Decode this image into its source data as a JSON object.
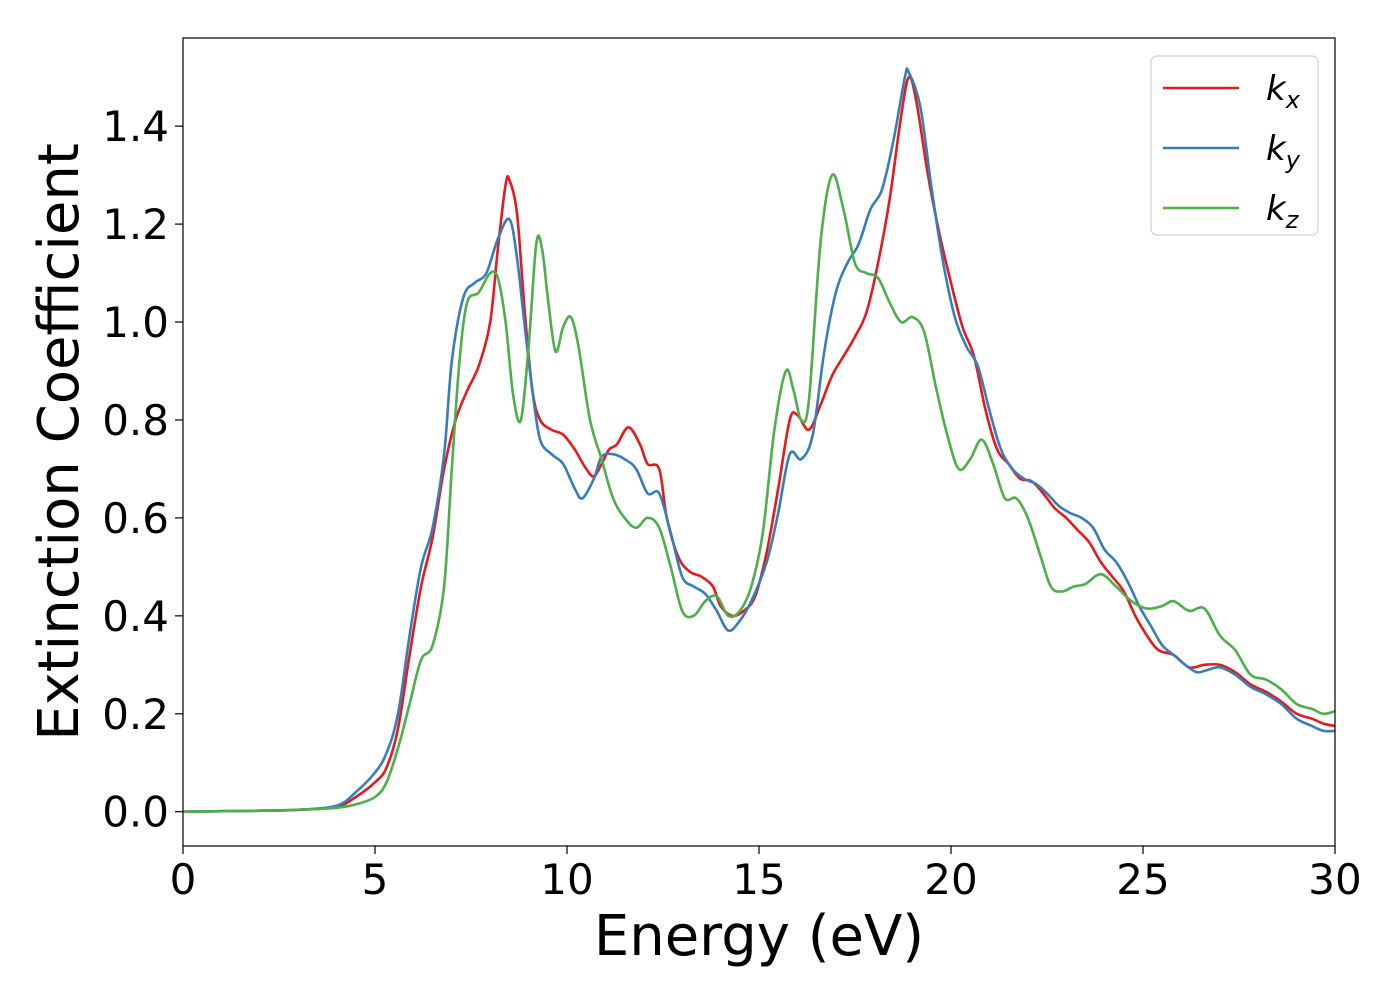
{
  "chart_data": {
    "type": "line",
    "xlabel": "Energy (eV)",
    "ylabel": "Extinction Coefficient",
    "xlim": [
      0,
      30
    ],
    "ylim": [
      -0.07,
      1.58
    ],
    "xticks": [
      0,
      5,
      10,
      15,
      20,
      25,
      30
    ],
    "yticks": [
      0.0,
      0.2,
      0.4,
      0.6,
      0.8,
      1.0,
      1.2,
      1.4
    ],
    "xtick_labels": [
      "0",
      "5",
      "10",
      "15",
      "20",
      "25",
      "30"
    ],
    "ytick_labels": [
      "0.0",
      "0.2",
      "0.4",
      "0.6",
      "0.8",
      "1.0",
      "1.2",
      "1.4"
    ],
    "grid": false,
    "legend_position": "top-right",
    "series": [
      {
        "name": "k_x",
        "label_main": "k",
        "label_sub": "x",
        "color": "#e41a1c",
        "points": [
          [
            0,
            0
          ],
          [
            1,
            0.001
          ],
          [
            2,
            0.002
          ],
          [
            3,
            0.004
          ],
          [
            4,
            0.01
          ],
          [
            4.5,
            0.03
          ],
          [
            5,
            0.06
          ],
          [
            5.3,
            0.09
          ],
          [
            5.6,
            0.17
          ],
          [
            5.9,
            0.32
          ],
          [
            6.2,
            0.46
          ],
          [
            6.5,
            0.56
          ],
          [
            6.8,
            0.7
          ],
          [
            7.1,
            0.8
          ],
          [
            7.4,
            0.86
          ],
          [
            7.7,
            0.91
          ],
          [
            8.0,
            1.0
          ],
          [
            8.2,
            1.15
          ],
          [
            8.4,
            1.28
          ],
          [
            8.5,
            1.29
          ],
          [
            8.7,
            1.22
          ],
          [
            8.9,
            1.02
          ],
          [
            9.1,
            0.86
          ],
          [
            9.3,
            0.8
          ],
          [
            9.6,
            0.78
          ],
          [
            9.9,
            0.77
          ],
          [
            10.2,
            0.74
          ],
          [
            10.5,
            0.7
          ],
          [
            10.7,
            0.685
          ],
          [
            10.9,
            0.71
          ],
          [
            11.1,
            0.74
          ],
          [
            11.3,
            0.75
          ],
          [
            11.6,
            0.785
          ],
          [
            11.9,
            0.75
          ],
          [
            12.1,
            0.71
          ],
          [
            12.4,
            0.7
          ],
          [
            12.6,
            0.6
          ],
          [
            12.9,
            0.52
          ],
          [
            13.2,
            0.49
          ],
          [
            13.5,
            0.48
          ],
          [
            13.8,
            0.46
          ],
          [
            14.0,
            0.42
          ],
          [
            14.3,
            0.4
          ],
          [
            14.6,
            0.41
          ],
          [
            14.9,
            0.44
          ],
          [
            15.2,
            0.53
          ],
          [
            15.5,
            0.66
          ],
          [
            15.8,
            0.8
          ],
          [
            16.0,
            0.81
          ],
          [
            16.3,
            0.78
          ],
          [
            16.6,
            0.83
          ],
          [
            16.9,
            0.89
          ],
          [
            17.2,
            0.93
          ],
          [
            17.5,
            0.97
          ],
          [
            17.8,
            1.02
          ],
          [
            18.1,
            1.12
          ],
          [
            18.4,
            1.25
          ],
          [
            18.7,
            1.42
          ],
          [
            18.9,
            1.5
          ],
          [
            19.1,
            1.45
          ],
          [
            19.4,
            1.3
          ],
          [
            19.7,
            1.18
          ],
          [
            20.0,
            1.08
          ],
          [
            20.3,
            0.99
          ],
          [
            20.6,
            0.93
          ],
          [
            20.9,
            0.82
          ],
          [
            21.2,
            0.74
          ],
          [
            21.5,
            0.71
          ],
          [
            21.8,
            0.68
          ],
          [
            22.1,
            0.675
          ],
          [
            22.4,
            0.65
          ],
          [
            22.7,
            0.62
          ],
          [
            23.0,
            0.6
          ],
          [
            23.3,
            0.575
          ],
          [
            23.6,
            0.55
          ],
          [
            23.9,
            0.51
          ],
          [
            24.2,
            0.48
          ],
          [
            24.5,
            0.45
          ],
          [
            24.8,
            0.4
          ],
          [
            25.1,
            0.36
          ],
          [
            25.4,
            0.33
          ],
          [
            25.8,
            0.32
          ],
          [
            26.2,
            0.295
          ],
          [
            26.6,
            0.3
          ],
          [
            27.0,
            0.3
          ],
          [
            27.4,
            0.285
          ],
          [
            27.8,
            0.26
          ],
          [
            28.2,
            0.245
          ],
          [
            28.6,
            0.225
          ],
          [
            29.0,
            0.2
          ],
          [
            29.4,
            0.19
          ],
          [
            29.7,
            0.18
          ],
          [
            30,
            0.175
          ]
        ]
      },
      {
        "name": "k_y",
        "label_main": "k",
        "label_sub": "y",
        "color": "#377eb8",
        "points": [
          [
            0,
            0
          ],
          [
            1,
            0.001
          ],
          [
            2,
            0.002
          ],
          [
            3,
            0.004
          ],
          [
            4,
            0.012
          ],
          [
            4.5,
            0.04
          ],
          [
            5,
            0.08
          ],
          [
            5.3,
            0.12
          ],
          [
            5.6,
            0.2
          ],
          [
            5.9,
            0.36
          ],
          [
            6.2,
            0.5
          ],
          [
            6.5,
            0.58
          ],
          [
            6.8,
            0.73
          ],
          [
            7.0,
            0.92
          ],
          [
            7.3,
            1.05
          ],
          [
            7.6,
            1.08
          ],
          [
            7.9,
            1.1
          ],
          [
            8.2,
            1.17
          ],
          [
            8.5,
            1.21
          ],
          [
            8.7,
            1.13
          ],
          [
            8.9,
            0.99
          ],
          [
            9.1,
            0.86
          ],
          [
            9.3,
            0.76
          ],
          [
            9.6,
            0.73
          ],
          [
            9.9,
            0.71
          ],
          [
            10.2,
            0.66
          ],
          [
            10.4,
            0.64
          ],
          [
            10.7,
            0.68
          ],
          [
            10.9,
            0.725
          ],
          [
            11.2,
            0.73
          ],
          [
            11.5,
            0.72
          ],
          [
            11.8,
            0.7
          ],
          [
            12.1,
            0.65
          ],
          [
            12.4,
            0.65
          ],
          [
            12.7,
            0.57
          ],
          [
            13.0,
            0.48
          ],
          [
            13.3,
            0.46
          ],
          [
            13.6,
            0.445
          ],
          [
            13.9,
            0.41
          ],
          [
            14.2,
            0.37
          ],
          [
            14.5,
            0.39
          ],
          [
            14.8,
            0.43
          ],
          [
            15.2,
            0.51
          ],
          [
            15.5,
            0.61
          ],
          [
            15.8,
            0.73
          ],
          [
            16.1,
            0.72
          ],
          [
            16.4,
            0.77
          ],
          [
            16.7,
            0.94
          ],
          [
            17.0,
            1.06
          ],
          [
            17.3,
            1.12
          ],
          [
            17.6,
            1.16
          ],
          [
            17.9,
            1.23
          ],
          [
            18.2,
            1.27
          ],
          [
            18.5,
            1.37
          ],
          [
            18.8,
            1.5
          ],
          [
            18.9,
            1.51
          ],
          [
            19.2,
            1.44
          ],
          [
            19.5,
            1.27
          ],
          [
            19.8,
            1.12
          ],
          [
            20.1,
            1.01
          ],
          [
            20.4,
            0.95
          ],
          [
            20.7,
            0.91
          ],
          [
            21.0,
            0.82
          ],
          [
            21.3,
            0.74
          ],
          [
            21.6,
            0.7
          ],
          [
            21.9,
            0.68
          ],
          [
            22.2,
            0.67
          ],
          [
            22.5,
            0.65
          ],
          [
            22.8,
            0.625
          ],
          [
            23.1,
            0.61
          ],
          [
            23.4,
            0.6
          ],
          [
            23.7,
            0.58
          ],
          [
            24.0,
            0.535
          ],
          [
            24.3,
            0.51
          ],
          [
            24.6,
            0.47
          ],
          [
            24.9,
            0.42
          ],
          [
            25.2,
            0.38
          ],
          [
            25.5,
            0.34
          ],
          [
            25.8,
            0.32
          ],
          [
            26.1,
            0.3
          ],
          [
            26.4,
            0.285
          ],
          [
            26.7,
            0.29
          ],
          [
            27.0,
            0.295
          ],
          [
            27.4,
            0.28
          ],
          [
            27.8,
            0.255
          ],
          [
            28.2,
            0.24
          ],
          [
            28.6,
            0.22
          ],
          [
            29.0,
            0.19
          ],
          [
            29.4,
            0.175
          ],
          [
            29.7,
            0.165
          ],
          [
            30,
            0.165
          ]
        ]
      },
      {
        "name": "k_z",
        "label_main": "k",
        "label_sub": "z",
        "color": "#4daf4a",
        "points": [
          [
            0,
            0
          ],
          [
            1,
            0.001
          ],
          [
            2,
            0.002
          ],
          [
            3,
            0.004
          ],
          [
            4,
            0.008
          ],
          [
            4.5,
            0.015
          ],
          [
            5,
            0.03
          ],
          [
            5.3,
            0.06
          ],
          [
            5.6,
            0.13
          ],
          [
            5.9,
            0.22
          ],
          [
            6.2,
            0.31
          ],
          [
            6.5,
            0.34
          ],
          [
            6.8,
            0.46
          ],
          [
            7.0,
            0.7
          ],
          [
            7.2,
            0.92
          ],
          [
            7.4,
            1.04
          ],
          [
            7.7,
            1.06
          ],
          [
            8.0,
            1.1
          ],
          [
            8.2,
            1.09
          ],
          [
            8.4,
            1.0
          ],
          [
            8.6,
            0.85
          ],
          [
            8.8,
            0.8
          ],
          [
            9.0,
            0.95
          ],
          [
            9.2,
            1.16
          ],
          [
            9.35,
            1.15
          ],
          [
            9.5,
            1.05
          ],
          [
            9.7,
            0.94
          ],
          [
            9.9,
            0.99
          ],
          [
            10.1,
            1.01
          ],
          [
            10.3,
            0.95
          ],
          [
            10.6,
            0.8
          ],
          [
            10.9,
            0.72
          ],
          [
            11.2,
            0.64
          ],
          [
            11.5,
            0.6
          ],
          [
            11.8,
            0.58
          ],
          [
            12.1,
            0.6
          ],
          [
            12.4,
            0.58
          ],
          [
            12.7,
            0.5
          ],
          [
            13.0,
            0.41
          ],
          [
            13.3,
            0.4
          ],
          [
            13.6,
            0.43
          ],
          [
            13.9,
            0.44
          ],
          [
            14.2,
            0.4
          ],
          [
            14.5,
            0.41
          ],
          [
            14.8,
            0.46
          ],
          [
            15.1,
            0.57
          ],
          [
            15.4,
            0.78
          ],
          [
            15.7,
            0.9
          ],
          [
            15.9,
            0.86
          ],
          [
            16.1,
            0.8
          ],
          [
            16.3,
            0.84
          ],
          [
            16.6,
            1.16
          ],
          [
            16.9,
            1.3
          ],
          [
            17.2,
            1.23
          ],
          [
            17.5,
            1.12
          ],
          [
            17.8,
            1.1
          ],
          [
            18.1,
            1.09
          ],
          [
            18.4,
            1.04
          ],
          [
            18.7,
            1.0
          ],
          [
            19.0,
            1.01
          ],
          [
            19.3,
            0.98
          ],
          [
            19.6,
            0.87
          ],
          [
            19.9,
            0.77
          ],
          [
            20.2,
            0.7
          ],
          [
            20.5,
            0.72
          ],
          [
            20.8,
            0.76
          ],
          [
            21.1,
            0.71
          ],
          [
            21.4,
            0.64
          ],
          [
            21.7,
            0.64
          ],
          [
            22.0,
            0.6
          ],
          [
            22.3,
            0.53
          ],
          [
            22.6,
            0.46
          ],
          [
            22.9,
            0.45
          ],
          [
            23.2,
            0.46
          ],
          [
            23.5,
            0.465
          ],
          [
            23.9,
            0.485
          ],
          [
            24.3,
            0.46
          ],
          [
            24.7,
            0.43
          ],
          [
            25.1,
            0.415
          ],
          [
            25.5,
            0.42
          ],
          [
            25.8,
            0.43
          ],
          [
            26.2,
            0.41
          ],
          [
            26.6,
            0.415
          ],
          [
            27.0,
            0.36
          ],
          [
            27.4,
            0.33
          ],
          [
            27.8,
            0.28
          ],
          [
            28.2,
            0.27
          ],
          [
            28.6,
            0.25
          ],
          [
            29.0,
            0.22
          ],
          [
            29.4,
            0.21
          ],
          [
            29.7,
            0.2
          ],
          [
            30,
            0.205
          ]
        ]
      }
    ]
  }
}
